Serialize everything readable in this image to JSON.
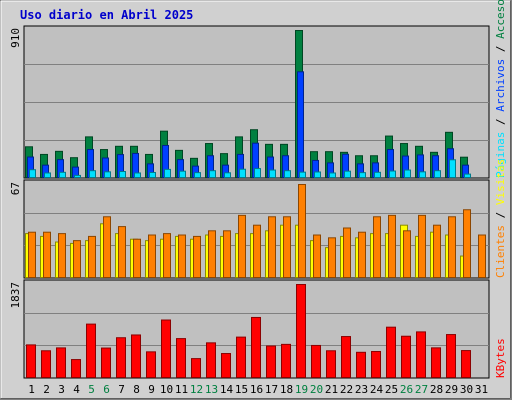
{
  "chart_data": {
    "type": "bar",
    "title": "Uso diario en Abril 2025",
    "days": [
      "1",
      "2",
      "3",
      "4",
      "5",
      "6",
      "7",
      "8",
      "9",
      "10",
      "11",
      "12",
      "13",
      "14",
      "15",
      "16",
      "17",
      "18",
      "19",
      "20",
      "21",
      "22",
      "23",
      "24",
      "25",
      "26",
      "27",
      "28",
      "29",
      "30",
      "31"
    ],
    "weekend_days": [
      "5",
      "6",
      "12",
      "13",
      "19",
      "20",
      "26",
      "27"
    ],
    "panels": [
      {
        "id": "top",
        "max_label": "910",
        "ymax": 910,
        "series": [
          {
            "name": "Accesos",
            "color": "#008040",
            "values": [
              195,
              148,
              167,
              128,
              256,
              178,
              198,
              198,
              148,
              291,
              173,
              124,
              215,
              153,
              256,
              300,
              210,
              210,
              910,
              165,
              165,
              161,
              140,
              140,
              261,
              215,
              198,
              161,
              284,
              131,
              0
            ]
          },
          {
            "name": "Archivos",
            "color": "#0040ff",
            "values": [
              132,
              82,
              116,
              70,
              178,
              126,
              147,
              154,
              90,
              203,
              116,
              76,
              140,
              82,
              148,
              217,
              132,
              140,
              656,
              111,
              96,
              149,
              90,
              96,
              178,
              138,
              145,
              140,
              183,
              82,
              0
            ]
          },
          {
            "name": "Páginas",
            "color": "#00e0ff",
            "values": [
              54,
              34,
              38,
              19,
              48,
              41,
              43,
              34,
              37,
              56,
              45,
              36,
              48,
              35,
              57,
              61,
              52,
              48,
              39,
              40,
              34,
              45,
              36,
              38,
              46,
              52,
              41,
              48,
              115,
              27,
              0
            ]
          }
        ]
      },
      {
        "id": "mid",
        "max_label": "67",
        "ymax": 67,
        "series": [
          {
            "name": "Visitas",
            "color": "#ffff00",
            "values": [
              32,
              30,
              26,
              25,
              27,
              39,
              32,
              28,
              27,
              28,
              30,
              28,
              31,
              30,
              32,
              32,
              34,
              38,
              38,
              27,
              22,
              30,
              29,
              32,
              32,
              38,
              30,
              33,
              31,
              16,
              0
            ]
          },
          {
            "name": "Clientes",
            "color": "#ff8000",
            "values": [
              33,
              33,
              32,
              27,
              30,
              44,
              37,
              28,
              31,
              32,
              31,
              30,
              34,
              34,
              45,
              38,
              44,
              44,
              67,
              31,
              29,
              36,
              33,
              44,
              45,
              34,
              45,
              38,
              44,
              49,
              31
            ]
          }
        ]
      },
      {
        "id": "bot",
        "max_label": "1837",
        "ymax": 1837,
        "series": [
          {
            "name": "KBytes",
            "color": "#ff0000",
            "values": [
              657,
              542,
              598,
              370,
              1063,
              595,
              797,
              851,
              521,
              1143,
              780,
              389,
              697,
              488,
              809,
              1193,
              635,
              667,
              1837,
              646,
              542,
              820,
              512,
              528,
              1003,
              826,
              911,
              599,
              859,
              546,
              0
            ]
          }
        ]
      }
    ],
    "legend_separator": " / ",
    "grid": true
  }
}
